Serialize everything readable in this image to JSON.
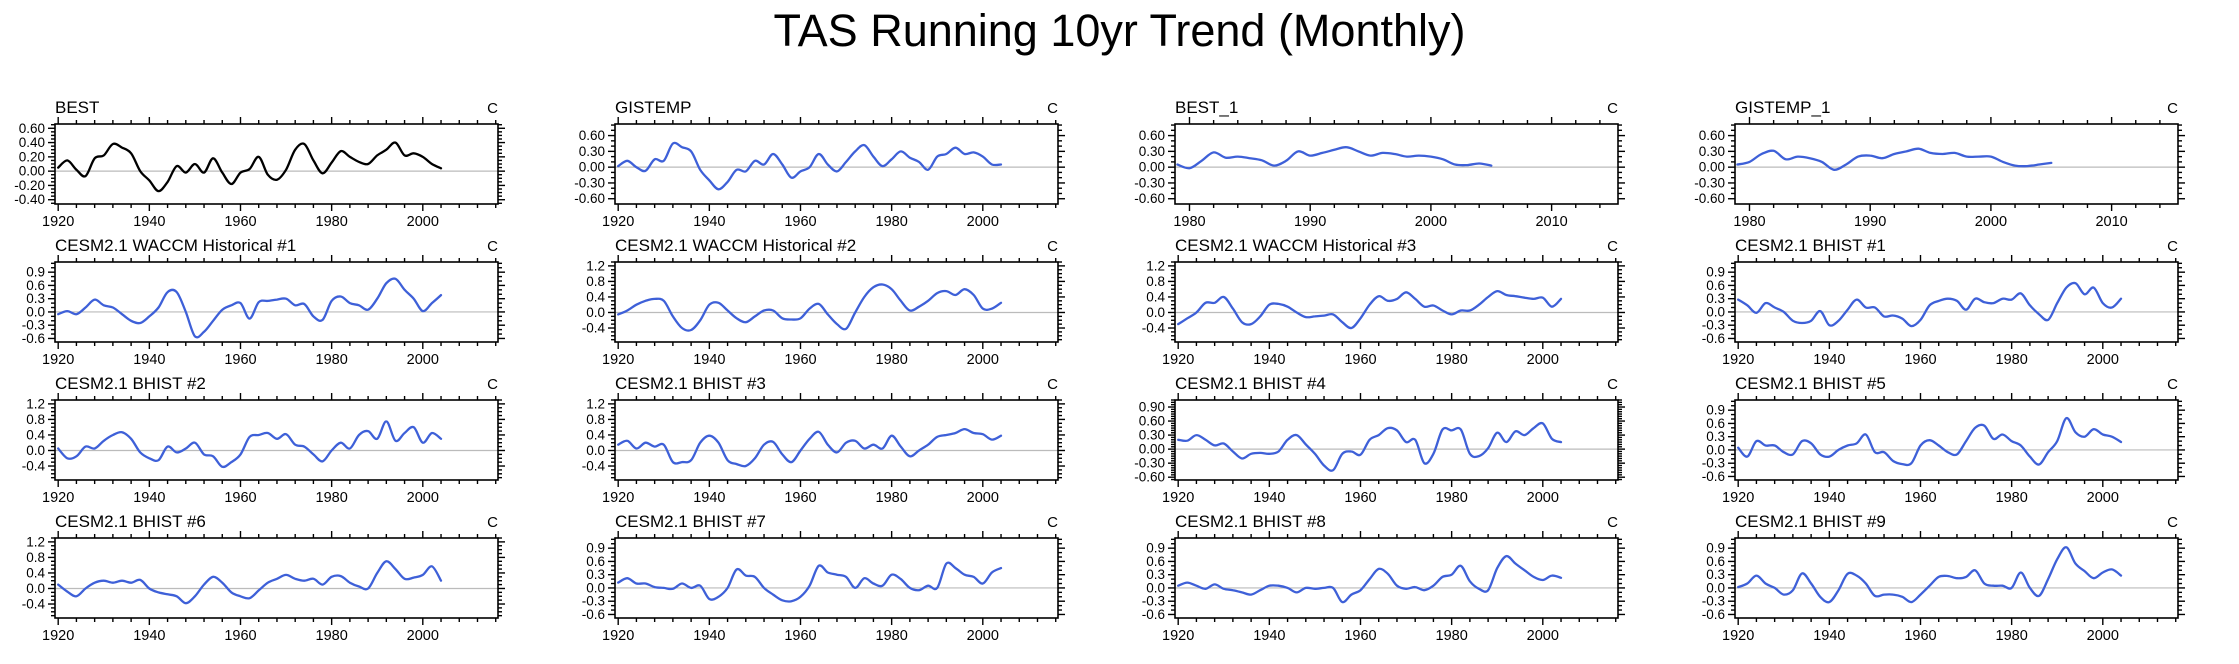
{
  "page_title": "TAS Running 10yr Trend (Monthly)",
  "colors": {
    "obs_line": "#000000",
    "model_line": "#3e60d8",
    "zero_line": "#bbbbbb",
    "frame": "#000000",
    "background": "#ffffff"
  },
  "x_axes": {
    "century": {
      "xlim": [
        1919.3,
        2016.5
      ],
      "major": [
        1920,
        1940,
        1960,
        1980,
        2000
      ],
      "labels": [
        "1920",
        "1940",
        "1960",
        "1980",
        "2000"
      ],
      "minor_step": 4
    },
    "recent": {
      "xlim": [
        1978.8,
        2015.5
      ],
      "major": [
        1980,
        1990,
        2000,
        2010
      ],
      "labels": [
        "1980",
        "1990",
        "2000",
        "2010"
      ],
      "minor_step": 2
    }
  },
  "y_axes": {
    "A": {
      "ylim": [
        -0.46,
        0.66
      ],
      "major": [
        0.6,
        0.4,
        0.2,
        0,
        -0.2,
        -0.4
      ],
      "labels": [
        "0.60",
        "0.40",
        "0.20",
        "0.00",
        "-0.20",
        "-0.40"
      ],
      "minor_step": 0.05
    },
    "B": {
      "ylim": [
        -0.7,
        0.82
      ],
      "major": [
        0.6,
        0.3,
        0,
        -0.3,
        -0.6
      ],
      "labels": [
        "0.60",
        "0.30",
        "0.00",
        "-0.30",
        "-0.60"
      ],
      "minor_step": 0.1
    },
    "C": {
      "ylim": [
        -0.68,
        1.13
      ],
      "major": [
        0.9,
        0.6,
        0.3,
        0,
        -0.3,
        -0.6
      ],
      "labels": [
        "0.9",
        "0.6",
        "0.3",
        "0.0",
        "-0.3",
        "-0.6"
      ],
      "minor_step": 0.1
    },
    "D": {
      "ylim": [
        -0.76,
        1.3
      ],
      "major": [
        1.2,
        0.8,
        0.4,
        0,
        -0.4
      ],
      "labels": [
        "1.2",
        "0.8",
        "0.4",
        "0.0",
        "-0.4"
      ],
      "minor_step": 0.1
    },
    "E": {
      "ylim": [
        -0.66,
        1.05
      ],
      "major": [
        0.9,
        0.6,
        0.3,
        0,
        -0.3,
        -0.6
      ],
      "labels": [
        "0.90",
        "0.60",
        "0.30",
        "0.00",
        "-0.30",
        "-0.60"
      ],
      "minor_step": 0.05
    }
  },
  "chart_data": [
    {
      "title": "BEST",
      "type": "line",
      "unit": "C",
      "line_color": "#000000",
      "x_axis": "century",
      "y_axis": "A",
      "x_start": 1920,
      "x_step": 2,
      "values": [
        0.05,
        0.15,
        0.02,
        -0.07,
        0.18,
        0.22,
        0.38,
        0.33,
        0.25,
        0.0,
        -0.13,
        -0.28,
        -0.15,
        0.07,
        -0.02,
        0.1,
        -0.02,
        0.18,
        -0.02,
        -0.18,
        -0.02,
        0.03,
        0.2,
        -0.05,
        -0.12,
        0.02,
        0.3,
        0.38,
        0.15,
        -0.03,
        0.12,
        0.28,
        0.2,
        0.13,
        0.1,
        0.22,
        0.3,
        0.4,
        0.22,
        0.25,
        0.2,
        0.1,
        0.04
      ]
    },
    {
      "title": "GISTEMP",
      "type": "line",
      "unit": "C",
      "line_color": "#3e60d8",
      "x_axis": "century",
      "y_axis": "B",
      "x_start": 1920,
      "x_step": 2,
      "values": [
        0.02,
        0.12,
        0.0,
        -0.07,
        0.15,
        0.12,
        0.45,
        0.38,
        0.3,
        -0.05,
        -0.25,
        -0.42,
        -0.28,
        -0.05,
        -0.08,
        0.12,
        0.05,
        0.25,
        0.05,
        -0.2,
        -0.08,
        0.0,
        0.25,
        0.05,
        -0.08,
        0.1,
        0.3,
        0.42,
        0.2,
        0.02,
        0.15,
        0.3,
        0.18,
        0.1,
        -0.05,
        0.2,
        0.25,
        0.37,
        0.25,
        0.28,
        0.2,
        0.05,
        0.05
      ]
    },
    {
      "title": "BEST_1",
      "type": "line",
      "unit": "C",
      "line_color": "#3e60d8",
      "x_axis": "recent",
      "y_axis": "B",
      "x_start": 1979,
      "x_step": 1,
      "values": [
        0.05,
        -0.02,
        0.12,
        0.28,
        0.18,
        0.2,
        0.17,
        0.13,
        0.03,
        0.12,
        0.3,
        0.22,
        0.27,
        0.33,
        0.38,
        0.3,
        0.22,
        0.27,
        0.25,
        0.2,
        0.22,
        0.2,
        0.15,
        0.05,
        0.04,
        0.07,
        0.03
      ]
    },
    {
      "title": "GISTEMP_1",
      "type": "line",
      "unit": "C",
      "line_color": "#3e60d8",
      "x_axis": "recent",
      "y_axis": "B",
      "x_start": 1979,
      "x_step": 1,
      "values": [
        0.05,
        0.1,
        0.25,
        0.31,
        0.15,
        0.2,
        0.17,
        0.1,
        -0.05,
        0.05,
        0.2,
        0.22,
        0.17,
        0.25,
        0.3,
        0.35,
        0.27,
        0.25,
        0.27,
        0.2,
        0.2,
        0.2,
        0.1,
        0.03,
        0.02,
        0.05,
        0.08
      ]
    },
    {
      "title": "CESM2.1 WACCM Historical #1",
      "type": "line",
      "unit": "C",
      "line_color": "#3e60d8",
      "x_axis": "century",
      "y_axis": "C",
      "x_start": 1920,
      "x_step": 2,
      "values": [
        -0.05,
        0.02,
        -0.05,
        0.1,
        0.28,
        0.15,
        0.1,
        -0.05,
        -0.2,
        -0.25,
        -0.1,
        0.1,
        0.45,
        0.45,
        0.0,
        -0.55,
        -0.45,
        -0.2,
        0.05,
        0.15,
        0.2,
        -0.15,
        0.22,
        0.25,
        0.28,
        0.3,
        0.15,
        0.18,
        -0.1,
        -0.18,
        0.25,
        0.35,
        0.2,
        0.15,
        0.05,
        0.3,
        0.65,
        0.75,
        0.5,
        0.3,
        0.02,
        0.2,
        0.38
      ]
    },
    {
      "title": "CESM2.1 WACCM Historical #2",
      "type": "line",
      "unit": "C",
      "line_color": "#3e60d8",
      "x_axis": "century",
      "y_axis": "D",
      "x_start": 1920,
      "x_step": 2,
      "values": [
        -0.05,
        0.05,
        0.2,
        0.3,
        0.35,
        0.3,
        -0.1,
        -0.4,
        -0.45,
        -0.2,
        0.2,
        0.25,
        0.05,
        -0.15,
        -0.25,
        -0.1,
        0.05,
        0.05,
        -0.15,
        -0.18,
        -0.15,
        0.1,
        0.22,
        -0.05,
        -0.3,
        -0.42,
        0.0,
        0.4,
        0.65,
        0.72,
        0.6,
        0.3,
        0.05,
        0.15,
        0.3,
        0.5,
        0.55,
        0.45,
        0.6,
        0.45,
        0.1,
        0.1,
        0.25
      ]
    },
    {
      "title": "CESM2.1 WACCM Historical #3",
      "type": "line",
      "unit": "C",
      "line_color": "#3e60d8",
      "x_axis": "century",
      "y_axis": "D",
      "x_start": 1920,
      "x_step": 2,
      "values": [
        -0.3,
        -0.15,
        0.0,
        0.25,
        0.25,
        0.4,
        0.1,
        -0.25,
        -0.3,
        -0.1,
        0.2,
        0.22,
        0.15,
        0.0,
        -0.12,
        -0.1,
        -0.08,
        -0.05,
        -0.25,
        -0.4,
        -0.15,
        0.2,
        0.42,
        0.3,
        0.35,
        0.52,
        0.35,
        0.15,
        0.18,
        0.05,
        -0.05,
        0.05,
        0.05,
        0.2,
        0.4,
        0.55,
        0.45,
        0.42,
        0.38,
        0.35,
        0.38,
        0.15,
        0.35
      ]
    },
    {
      "title": "CESM2.1 BHIST #1",
      "type": "line",
      "unit": "C",
      "line_color": "#3e60d8",
      "x_axis": "century",
      "y_axis": "C",
      "x_start": 1920,
      "x_step": 2,
      "values": [
        0.28,
        0.15,
        -0.02,
        0.2,
        0.1,
        0.0,
        -0.2,
        -0.25,
        -0.2,
        0.02,
        -0.3,
        -0.2,
        0.05,
        0.28,
        0.1,
        0.1,
        -0.1,
        -0.08,
        -0.15,
        -0.32,
        -0.18,
        0.15,
        0.25,
        0.3,
        0.25,
        0.05,
        0.3,
        0.22,
        0.2,
        0.3,
        0.28,
        0.42,
        0.15,
        -0.05,
        -0.18,
        0.2,
        0.55,
        0.65,
        0.4,
        0.55,
        0.2,
        0.1,
        0.3
      ]
    },
    {
      "title": "CESM2.1 BHIST #2",
      "type": "line",
      "unit": "C",
      "line_color": "#3e60d8",
      "x_axis": "century",
      "y_axis": "D",
      "x_start": 1920,
      "x_step": 2,
      "values": [
        0.05,
        -0.2,
        -0.15,
        0.1,
        0.05,
        0.25,
        0.4,
        0.47,
        0.3,
        -0.05,
        -0.2,
        -0.25,
        0.1,
        -0.05,
        0.05,
        0.2,
        -0.1,
        -0.15,
        -0.42,
        -0.3,
        -0.1,
        0.35,
        0.4,
        0.45,
        0.3,
        0.42,
        0.15,
        0.1,
        -0.1,
        -0.28,
        0.0,
        0.2,
        0.05,
        0.4,
        0.5,
        0.3,
        0.75,
        0.25,
        0.45,
        0.6,
        0.2,
        0.45,
        0.3
      ]
    },
    {
      "title": "CESM2.1 BHIST #3",
      "type": "line",
      "unit": "C",
      "line_color": "#3e60d8",
      "x_axis": "century",
      "y_axis": "D",
      "x_start": 1920,
      "x_step": 2,
      "values": [
        0.15,
        0.25,
        0.05,
        0.2,
        0.1,
        0.15,
        -0.3,
        -0.3,
        -0.25,
        0.2,
        0.38,
        0.2,
        -0.25,
        -0.35,
        -0.4,
        -0.2,
        0.15,
        0.22,
        -0.1,
        -0.3,
        0.0,
        0.3,
        0.48,
        0.15,
        -0.05,
        0.2,
        0.25,
        0.05,
        0.15,
        0.05,
        0.38,
        0.1,
        -0.15,
        0.0,
        0.15,
        0.35,
        0.4,
        0.45,
        0.55,
        0.45,
        0.42,
        0.28,
        0.38
      ]
    },
    {
      "title": "CESM2.1 BHIST #4",
      "type": "line",
      "unit": "C",
      "line_color": "#3e60d8",
      "x_axis": "century",
      "y_axis": "E",
      "x_start": 1920,
      "x_step": 2,
      "values": [
        0.2,
        0.18,
        0.3,
        0.2,
        0.08,
        0.12,
        -0.05,
        -0.2,
        -0.1,
        -0.08,
        -0.1,
        -0.05,
        0.2,
        0.3,
        0.1,
        -0.1,
        -0.35,
        -0.45,
        -0.1,
        -0.05,
        -0.12,
        0.2,
        0.3,
        0.45,
        0.4,
        0.15,
        0.2,
        -0.3,
        -0.1,
        0.42,
        0.4,
        0.42,
        -0.1,
        -0.15,
        0.02,
        0.35,
        0.15,
        0.38,
        0.3,
        0.45,
        0.55,
        0.22,
        0.15
      ]
    },
    {
      "title": "CESM2.1 BHIST #5",
      "type": "line",
      "unit": "C",
      "line_color": "#3e60d8",
      "x_axis": "century",
      "y_axis": "C",
      "x_start": 1920,
      "x_step": 2,
      "values": [
        0.05,
        -0.15,
        0.2,
        0.1,
        0.1,
        -0.05,
        -0.1,
        0.2,
        0.15,
        -0.1,
        -0.15,
        0.0,
        0.1,
        0.15,
        0.35,
        -0.05,
        -0.05,
        -0.25,
        -0.32,
        -0.3,
        0.1,
        0.22,
        0.1,
        -0.05,
        -0.1,
        0.2,
        0.5,
        0.55,
        0.25,
        0.35,
        0.2,
        0.1,
        -0.15,
        -0.33,
        -0.05,
        0.2,
        0.72,
        0.4,
        0.3,
        0.47,
        0.35,
        0.3,
        0.18
      ]
    },
    {
      "title": "CESM2.1 BHIST #6",
      "type": "line",
      "unit": "C",
      "line_color": "#3e60d8",
      "x_axis": "century",
      "y_axis": "D",
      "x_start": 1920,
      "x_step": 2,
      "values": [
        0.1,
        -0.08,
        -0.2,
        0.0,
        0.15,
        0.2,
        0.15,
        0.2,
        0.15,
        0.22,
        0.0,
        -0.1,
        -0.15,
        -0.2,
        -0.38,
        -0.2,
        0.1,
        0.3,
        0.15,
        -0.1,
        -0.2,
        -0.25,
        -0.05,
        0.15,
        0.25,
        0.35,
        0.25,
        0.2,
        0.25,
        0.1,
        0.3,
        0.32,
        0.15,
        0.05,
        0.0,
        0.4,
        0.7,
        0.5,
        0.25,
        0.28,
        0.35,
        0.57,
        0.2
      ]
    },
    {
      "title": "CESM2.1 BHIST #7",
      "type": "line",
      "unit": "C",
      "line_color": "#3e60d8",
      "x_axis": "century",
      "y_axis": "C",
      "x_start": 1920,
      "x_step": 2,
      "values": [
        0.12,
        0.22,
        0.1,
        0.1,
        0.02,
        0.0,
        -0.02,
        0.1,
        0.0,
        0.05,
        -0.25,
        -0.2,
        0.0,
        0.42,
        0.28,
        0.25,
        0.0,
        -0.15,
        -0.28,
        -0.3,
        -0.2,
        0.05,
        0.5,
        0.35,
        0.3,
        0.25,
        0.0,
        0.22,
        0.1,
        0.05,
        0.3,
        0.2,
        0.0,
        -0.05,
        0.05,
        0.0,
        0.55,
        0.45,
        0.3,
        0.25,
        0.1,
        0.35,
        0.45
      ]
    },
    {
      "title": "CESM2.1 BHIST #8",
      "type": "line",
      "unit": "C",
      "line_color": "#3e60d8",
      "x_axis": "century",
      "y_axis": "C",
      "x_start": 1920,
      "x_step": 2,
      "values": [
        0.05,
        0.12,
        0.05,
        -0.02,
        0.08,
        -0.02,
        -0.05,
        -0.1,
        -0.15,
        -0.05,
        0.05,
        0.05,
        0.0,
        -0.1,
        0.0,
        -0.02,
        0.0,
        0.0,
        -0.32,
        -0.15,
        -0.05,
        0.2,
        0.43,
        0.32,
        0.05,
        -0.02,
        0.02,
        -0.05,
        0.05,
        0.25,
        0.3,
        0.5,
        0.15,
        -0.02,
        -0.05,
        0.45,
        0.72,
        0.55,
        0.4,
        0.25,
        0.18,
        0.28,
        0.23
      ]
    },
    {
      "title": "CESM2.1 BHIST #9",
      "type": "line",
      "unit": "C",
      "line_color": "#3e60d8",
      "x_axis": "century",
      "y_axis": "C",
      "x_start": 1920,
      "x_step": 2,
      "values": [
        0.02,
        0.1,
        0.28,
        0.1,
        0.0,
        -0.15,
        -0.05,
        0.33,
        0.1,
        -0.2,
        -0.32,
        -0.05,
        0.32,
        0.28,
        0.1,
        -0.18,
        -0.15,
        -0.15,
        -0.2,
        -0.32,
        -0.15,
        0.05,
        0.25,
        0.27,
        0.22,
        0.25,
        0.4,
        0.1,
        0.05,
        0.05,
        0.0,
        0.35,
        0.0,
        -0.18,
        0.2,
        0.65,
        0.92,
        0.55,
        0.38,
        0.22,
        0.35,
        0.42,
        0.28
      ]
    }
  ]
}
